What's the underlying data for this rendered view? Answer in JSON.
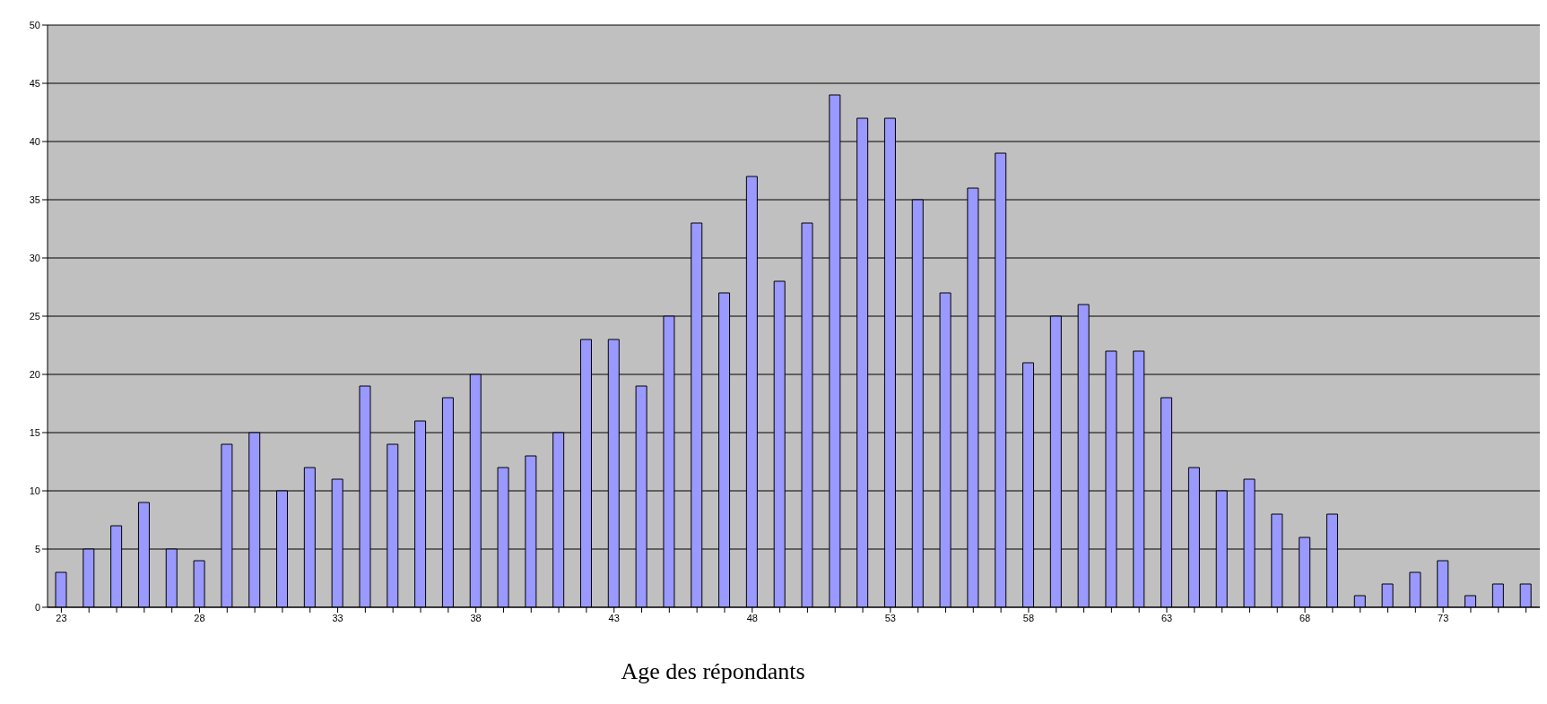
{
  "chart_data": {
    "type": "bar",
    "xlabel": "Age des répondants",
    "categories": [
      "23",
      null,
      null,
      null,
      null,
      "28",
      null,
      null,
      null,
      null,
      "33",
      null,
      null,
      null,
      null,
      "38",
      null,
      null,
      null,
      null,
      "43",
      null,
      null,
      null,
      null,
      "48",
      null,
      null,
      null,
      null,
      "53",
      null,
      null,
      null,
      null,
      "58",
      null,
      null,
      null,
      null,
      "63",
      null,
      null,
      null,
      null,
      "68",
      null,
      null,
      null,
      null,
      "73",
      null,
      null,
      null
    ],
    "values": [
      3,
      5,
      7,
      9,
      5,
      4,
      14,
      15,
      10,
      12,
      11,
      19,
      14,
      16,
      18,
      20,
      12,
      13,
      15,
      23,
      23,
      19,
      25,
      33,
      27,
      37,
      28,
      33,
      44,
      42,
      42,
      35,
      27,
      36,
      39,
      21,
      25,
      26,
      22,
      22,
      18,
      12,
      10,
      11,
      8,
      6,
      8,
      1,
      2,
      3,
      4,
      1,
      2,
      2
    ],
    "color": "#9999ff",
    "ylim": [
      0,
      50
    ],
    "yticks": [
      0,
      5,
      10,
      15,
      20,
      25,
      30,
      35,
      40,
      45,
      50
    ],
    "grid": "y",
    "legend": false
  }
}
